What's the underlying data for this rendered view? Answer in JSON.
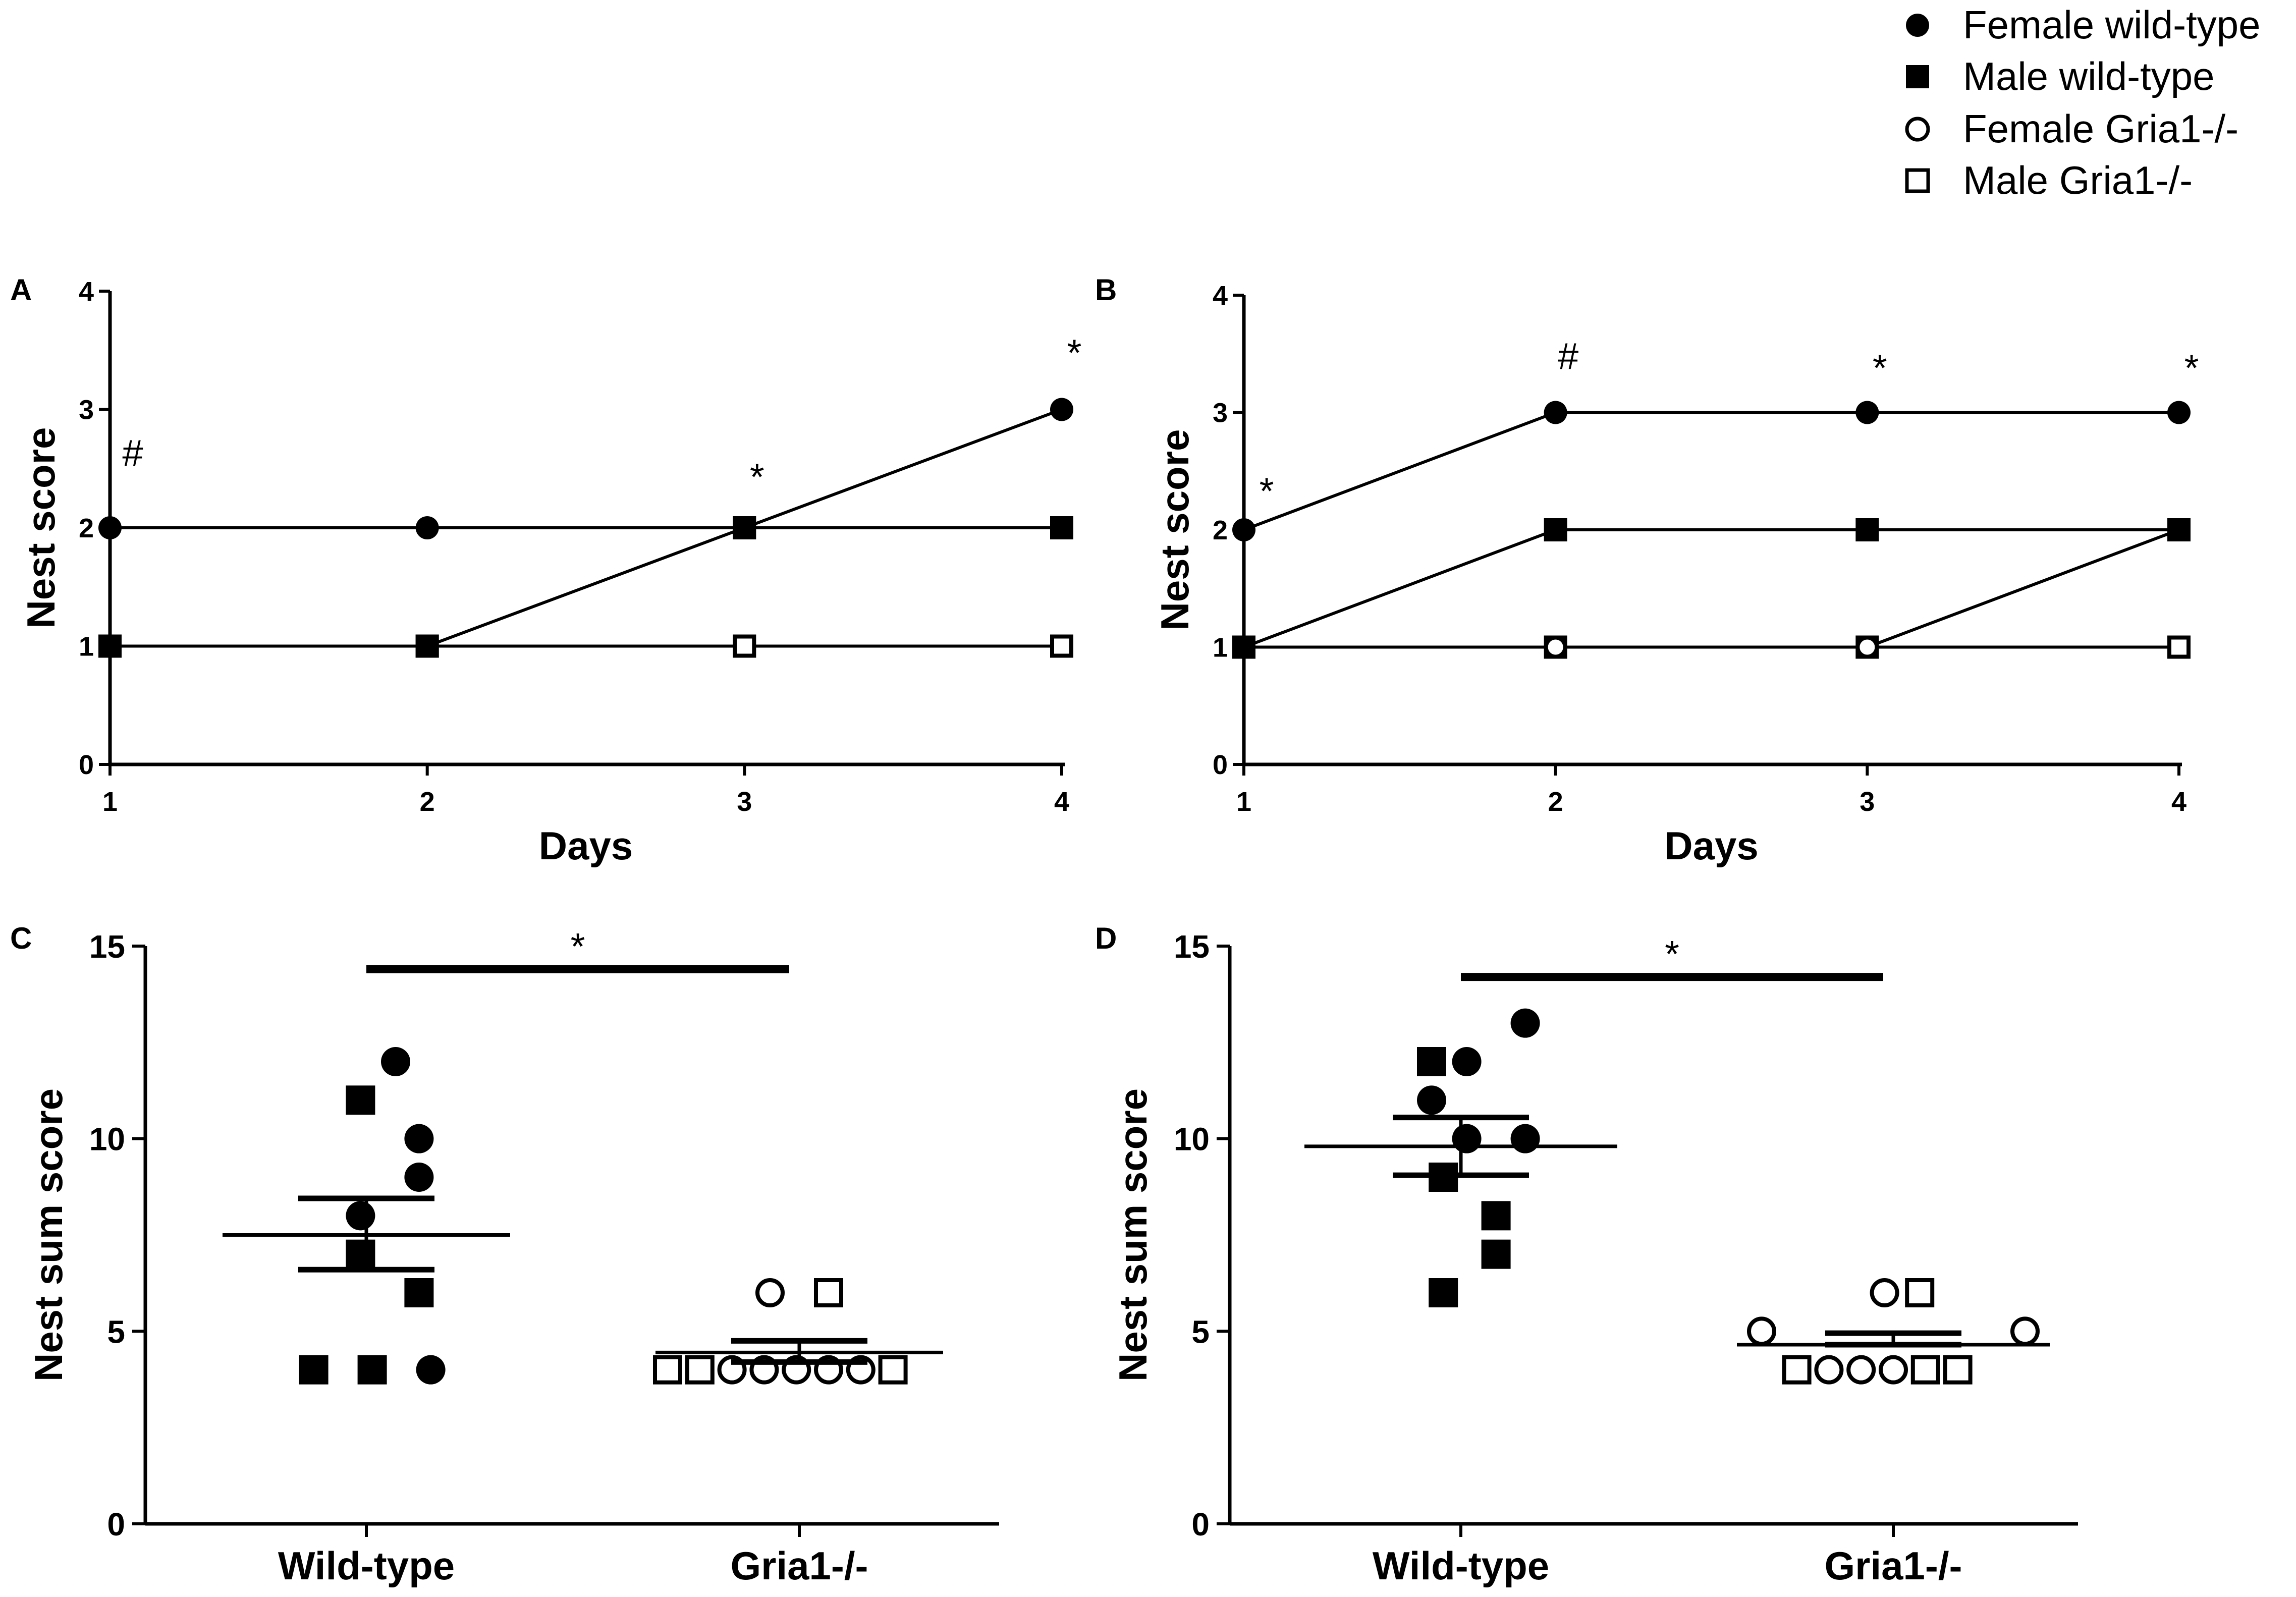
{
  "legend": {
    "items": [
      {
        "label": "Female wild-type",
        "marker": "filled-circle"
      },
      {
        "label": "Male wild-type",
        "marker": "filled-square"
      },
      {
        "label": "Female Gria1-/-",
        "marker": "open-circle"
      },
      {
        "label": "Male Gria1-/-",
        "marker": "open-square"
      }
    ]
  },
  "chart_data": [
    {
      "panel": "A",
      "type": "line",
      "xlabel": "Days",
      "ylabel": "Nest score",
      "x": [
        1,
        2,
        3,
        4
      ],
      "xticks": [
        "1",
        "2",
        "3",
        "4"
      ],
      "yticks": [
        "0",
        "1",
        "2",
        "3",
        "4"
      ],
      "ylim": [
        0,
        4
      ],
      "series": [
        {
          "name": "Female Gria1-/-",
          "marker": "open-circle",
          "values": [
            1,
            1,
            1,
            1
          ]
        },
        {
          "name": "Male Gria1-/-",
          "marker": "open-square",
          "values": [
            1,
            1,
            1,
            1
          ]
        },
        {
          "name": "Male wild-type",
          "marker": "filled-square",
          "values": [
            1,
            1,
            2,
            2
          ]
        },
        {
          "name": "Female wild-type",
          "marker": "filled-circle",
          "values": [
            2,
            2,
            2,
            3
          ]
        }
      ],
      "annotations": [
        {
          "text": "#",
          "x": 1,
          "y": 2.65
        },
        {
          "text": "*",
          "x": 3,
          "y": 2.45
        },
        {
          "text": "*",
          "x": 4,
          "y": 3.5
        }
      ]
    },
    {
      "panel": "B",
      "type": "line",
      "xlabel": "Days",
      "ylabel": "Nest score",
      "x": [
        1,
        2,
        3,
        4
      ],
      "xticks": [
        "1",
        "2",
        "3",
        "4"
      ],
      "yticks": [
        "0",
        "1",
        "2",
        "3",
        "4"
      ],
      "ylim": [
        0,
        4
      ],
      "series": [
        {
          "name": "Male Gria1-/-",
          "marker": "open-square",
          "values": [
            1,
            1,
            1,
            1
          ]
        },
        {
          "name": "Female Gria1-/-",
          "marker": "open-circle",
          "values": [
            1,
            1,
            1,
            2
          ]
        },
        {
          "name": "Male wild-type",
          "marker": "filled-square",
          "values": [
            1,
            2,
            2,
            2
          ]
        },
        {
          "name": "Female wild-type",
          "marker": "filled-circle",
          "values": [
            2,
            3,
            3,
            3
          ]
        }
      ],
      "annotations": [
        {
          "text": "*",
          "x": 1,
          "y": 2.35
        },
        {
          "text": "#",
          "x": 2,
          "y": 3.5
        },
        {
          "text": "*",
          "x": 3,
          "y": 3.4
        },
        {
          "text": "*",
          "x": 4,
          "y": 3.4
        }
      ]
    },
    {
      "panel": "C",
      "type": "scatter",
      "ylabel": "Nest sum score",
      "categories": [
        "Wild-type",
        "Gria1-/-"
      ],
      "yticks": [
        "0",
        "5",
        "10",
        "15"
      ],
      "ylim": [
        0,
        15
      ],
      "points": [
        {
          "group": 0,
          "dx": 0.1,
          "y": 12,
          "marker": "filled-circle"
        },
        {
          "group": 0,
          "dx": -0.02,
          "y": 11,
          "marker": "filled-square"
        },
        {
          "group": 0,
          "dx": 0.18,
          "y": 10,
          "marker": "filled-circle"
        },
        {
          "group": 0,
          "dx": 0.18,
          "y": 9,
          "marker": "filled-circle"
        },
        {
          "group": 0,
          "dx": -0.02,
          "y": 8,
          "marker": "filled-circle"
        },
        {
          "group": 0,
          "dx": -0.02,
          "y": 7,
          "marker": "filled-square"
        },
        {
          "group": 0,
          "dx": 0.18,
          "y": 6,
          "marker": "filled-square"
        },
        {
          "group": 0,
          "dx": -0.18,
          "y": 4,
          "marker": "filled-square"
        },
        {
          "group": 0,
          "dx": 0.02,
          "y": 4,
          "marker": "filled-square"
        },
        {
          "group": 0,
          "dx": 0.22,
          "y": 4,
          "marker": "filled-circle"
        },
        {
          "group": 1,
          "dx": -0.1,
          "y": 6,
          "marker": "open-circle"
        },
        {
          "group": 1,
          "dx": 0.1,
          "y": 6,
          "marker": "open-square"
        },
        {
          "group": 1,
          "dx": -0.45,
          "y": 4,
          "marker": "open-square"
        },
        {
          "group": 1,
          "dx": -0.34,
          "y": 4,
          "marker": "open-square"
        },
        {
          "group": 1,
          "dx": -0.23,
          "y": 4,
          "marker": "open-circle"
        },
        {
          "group": 1,
          "dx": -0.12,
          "y": 4,
          "marker": "open-circle"
        },
        {
          "group": 1,
          "dx": -0.01,
          "y": 4,
          "marker": "open-circle"
        },
        {
          "group": 1,
          "dx": 0.1,
          "y": 4,
          "marker": "open-circle"
        },
        {
          "group": 1,
          "dx": 0.21,
          "y": 4,
          "marker": "open-circle"
        },
        {
          "group": 1,
          "dx": 0.32,
          "y": 4,
          "marker": "open-square"
        }
      ],
      "summary": [
        {
          "group": 0,
          "mean": 7.5,
          "sem_low": 6.6,
          "sem_high": 8.45
        },
        {
          "group": 1,
          "mean": 4.45,
          "sem_low": 4.2,
          "sem_high": 4.75
        }
      ],
      "significance": {
        "text": "*",
        "y": 14.4
      }
    },
    {
      "panel": "D",
      "type": "scatter",
      "ylabel": "Nest sum score",
      "categories": [
        "Wild-type",
        "Gria1-/-"
      ],
      "yticks": [
        "0",
        "5",
        "10",
        "15"
      ],
      "ylim": [
        0,
        15
      ],
      "points": [
        {
          "group": 0,
          "dx": 0.22,
          "y": 13,
          "marker": "filled-circle"
        },
        {
          "group": 0,
          "dx": -0.1,
          "y": 12,
          "marker": "filled-square"
        },
        {
          "group": 0,
          "dx": 0.02,
          "y": 12,
          "marker": "filled-circle"
        },
        {
          "group": 0,
          "dx": -0.1,
          "y": 11,
          "marker": "filled-circle"
        },
        {
          "group": 0,
          "dx": 0.02,
          "y": 10,
          "marker": "filled-circle"
        },
        {
          "group": 0,
          "dx": 0.22,
          "y": 10,
          "marker": "filled-circle"
        },
        {
          "group": 0,
          "dx": -0.06,
          "y": 9,
          "marker": "filled-square"
        },
        {
          "group": 0,
          "dx": 0.12,
          "y": 8,
          "marker": "filled-square"
        },
        {
          "group": 0,
          "dx": 0.12,
          "y": 7,
          "marker": "filled-square"
        },
        {
          "group": 0,
          "dx": -0.06,
          "y": 6,
          "marker": "filled-square"
        },
        {
          "group": 1,
          "dx": -0.45,
          "y": 5,
          "marker": "open-circle"
        },
        {
          "group": 1,
          "dx": 0.45,
          "y": 5,
          "marker": "open-circle"
        },
        {
          "group": 1,
          "dx": -0.03,
          "y": 6,
          "marker": "open-circle"
        },
        {
          "group": 1,
          "dx": 0.09,
          "y": 6,
          "marker": "open-square"
        },
        {
          "group": 1,
          "dx": -0.33,
          "y": 4,
          "marker": "open-square"
        },
        {
          "group": 1,
          "dx": -0.22,
          "y": 4,
          "marker": "open-circle"
        },
        {
          "group": 1,
          "dx": -0.11,
          "y": 4,
          "marker": "open-circle"
        },
        {
          "group": 1,
          "dx": 0.0,
          "y": 4,
          "marker": "open-circle"
        },
        {
          "group": 1,
          "dx": 0.11,
          "y": 4,
          "marker": "open-square"
        },
        {
          "group": 1,
          "dx": 0.22,
          "y": 4,
          "marker": "open-square"
        }
      ],
      "summary": [
        {
          "group": 0,
          "mean": 9.8,
          "sem_low": 9.05,
          "sem_high": 10.55
        },
        {
          "group": 1,
          "mean": 4.65,
          "sem_low": 4.65,
          "sem_high": 4.95
        }
      ],
      "significance": {
        "text": "*",
        "y": 14.2
      }
    }
  ]
}
